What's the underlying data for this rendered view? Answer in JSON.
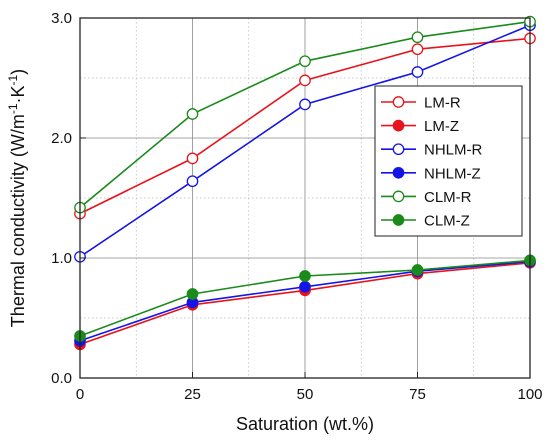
{
  "chart_data": {
    "type": "line",
    "title": "",
    "xlabel": "Saturation (wt.%)",
    "ylabel_parts": {
      "main": "Thermal conductivity (W/m",
      "sup1": "-1",
      "mid": "·K",
      "sup2": "-1",
      "end": ")"
    },
    "xlim": [
      0,
      100
    ],
    "ylim": [
      0.0,
      3.0
    ],
    "x_ticks": [
      0,
      25,
      50,
      75,
      100
    ],
    "x_tick_labels": [
      "0",
      "25",
      "50",
      "75",
      "100"
    ],
    "y_ticks": [
      0.0,
      1.0,
      2.0,
      3.0
    ],
    "y_tick_labels": [
      "0.0",
      "1.0",
      "2.0",
      "3.0"
    ],
    "grid": true,
    "legend_position": "center-right",
    "x": [
      0,
      25,
      50,
      75,
      100
    ],
    "series": [
      {
        "name": "LM-R",
        "color": "#e8141c",
        "marker": "open-circle",
        "values": [
          1.37,
          1.83,
          2.48,
          2.74,
          2.83
        ]
      },
      {
        "name": "LM-Z",
        "color": "#e8141c",
        "marker": "filled-circle",
        "values": [
          0.28,
          0.61,
          0.73,
          0.87,
          0.96
        ]
      },
      {
        "name": "NHLM-R",
        "color": "#1414e6",
        "marker": "open-circle",
        "values": [
          1.01,
          1.64,
          2.28,
          2.55,
          2.94
        ]
      },
      {
        "name": "NHLM-Z",
        "color": "#1414e6",
        "marker": "filled-circle",
        "values": [
          0.31,
          0.63,
          0.76,
          0.89,
          0.97
        ]
      },
      {
        "name": "CLM-R",
        "color": "#1a8a1a",
        "marker": "open-circle",
        "values": [
          1.42,
          2.2,
          2.64,
          2.84,
          2.97
        ]
      },
      {
        "name": "CLM-Z",
        "color": "#1a8a1a",
        "marker": "filled-circle",
        "values": [
          0.35,
          0.7,
          0.85,
          0.9,
          0.98
        ]
      }
    ]
  }
}
